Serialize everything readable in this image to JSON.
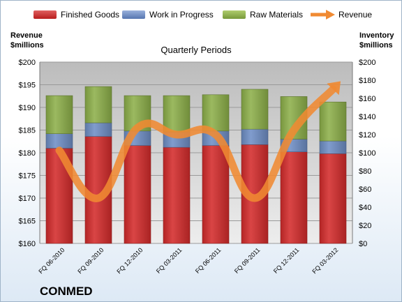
{
  "brand": "CONMED",
  "colors": {
    "finished_goods": "#d42c2c",
    "work_in_progress": "#6f8fc6",
    "raw_materials": "#8db04a",
    "revenue": "#f08a32"
  },
  "chart_data": {
    "type": "bar",
    "subtitle": "Quarterly Periods",
    "left_axis": {
      "title_line1": "Revenue",
      "title_line2": "$millions",
      "range": [
        160,
        200
      ],
      "ticks": [
        "$160",
        "$165",
        "$170",
        "$175",
        "$180",
        "$185",
        "$190",
        "$195",
        "$200"
      ]
    },
    "right_axis": {
      "title_line1": "Inventory",
      "title_line2": "$millions",
      "range": [
        0,
        200
      ],
      "ticks": [
        "$0",
        "$20",
        "$40",
        "$60",
        "$80",
        "$100",
        "$120",
        "$140",
        "$160",
        "$180",
        "$200"
      ]
    },
    "categories": [
      "FQ 06-2010",
      "FQ 09-2010",
      "FQ 12-2010",
      "FQ 03-2011",
      "FQ 06-2011",
      "FQ 09-2011",
      "FQ 12-2011",
      "FQ 03-2012"
    ],
    "series": [
      {
        "name": "Finished Goods",
        "axis": "right",
        "stack": true,
        "values": [
          105,
          118,
          108,
          106,
          108,
          109,
          101,
          99
        ]
      },
      {
        "name": "Work in Progress",
        "axis": "right",
        "stack": true,
        "values": [
          16,
          15,
          16,
          17,
          16,
          17,
          14,
          14
        ]
      },
      {
        "name": "Raw Materials",
        "axis": "right",
        "stack": true,
        "values": [
          42,
          40,
          39,
          40,
          40,
          44,
          47,
          43
        ]
      },
      {
        "name": "Revenue",
        "axis": "left",
        "type": "line",
        "values": [
          180.5,
          170.0,
          185.5,
          184.0,
          184.0,
          170.0,
          185.0,
          194.0
        ]
      }
    ],
    "grid": true,
    "legend": "top"
  }
}
